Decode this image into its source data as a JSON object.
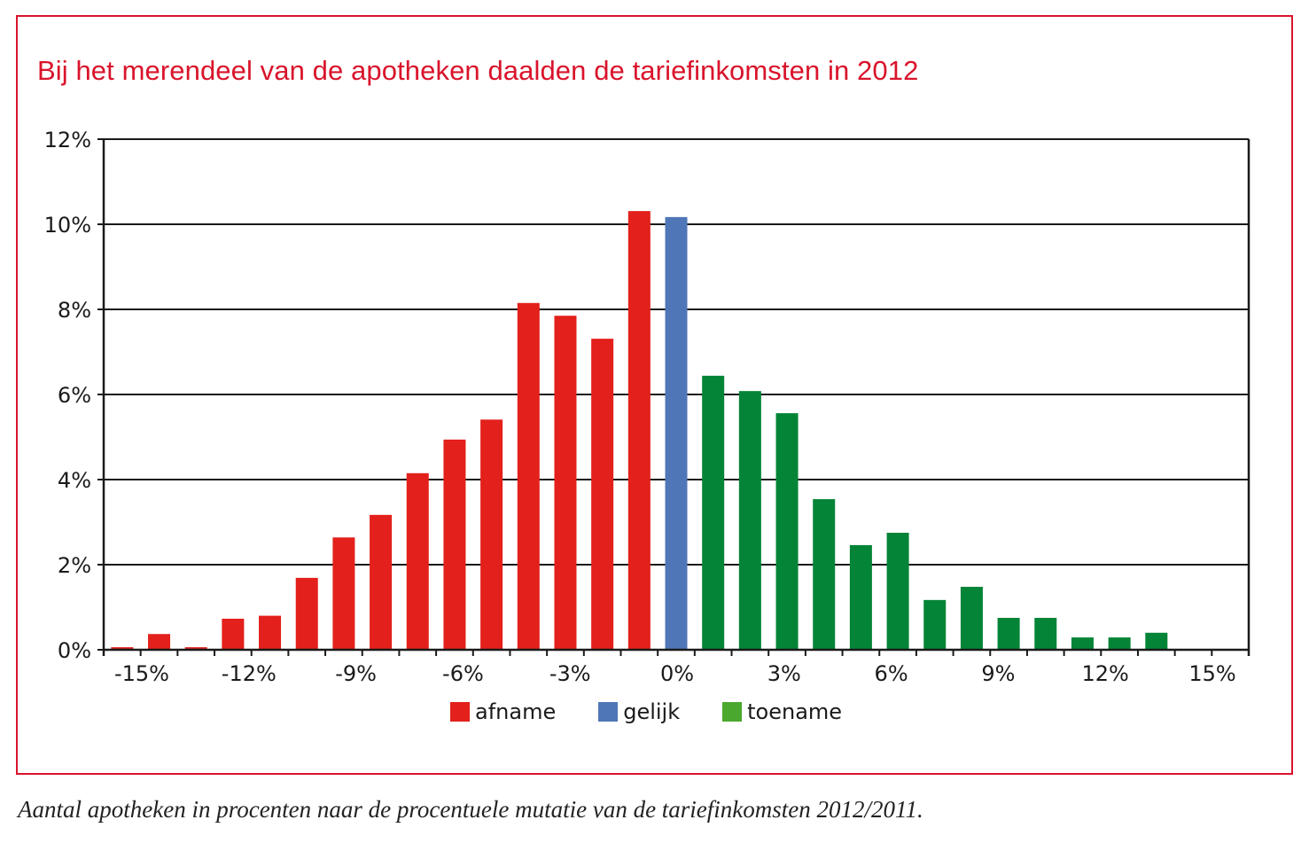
{
  "title": "Bij het merendeel van de apotheken daalden de tariefinkomsten in 2012",
  "caption": "Aantal apotheken in procenten naar de procentuele mutatie van de tariefinkomsten 2012/2011.",
  "colors": {
    "frame": "#d9142b",
    "title": "#d9142b",
    "afname": "#e3201b",
    "gelijk": "#4f76b6",
    "toename": "#048437",
    "toename_legend": "#4aa82e",
    "axis": "#1a1a1a"
  },
  "chart_data": {
    "type": "bar",
    "title": "Bij het merendeel van de apotheken daalden de tariefinkomsten in 2012",
    "xlabel": "",
    "ylabel": "",
    "ylim": [
      0,
      12
    ],
    "xlim": [
      -15,
      15
    ],
    "grid": true,
    "legend_position": "bottom",
    "y_ticks": [
      "0%",
      "2%",
      "4%",
      "6%",
      "8%",
      "10%",
      "12%"
    ],
    "y_tick_values": [
      0,
      2,
      4,
      6,
      8,
      10,
      12
    ],
    "x_ticks": [
      "-15%",
      "-12%",
      "-9%",
      "-6%",
      "-3%",
      "0%",
      "3%",
      "6%",
      "9%",
      "12%",
      "15%"
    ],
    "x_tick_values": [
      -15,
      -12,
      -9,
      -6,
      -3,
      0,
      3,
      6,
      9,
      12,
      15
    ],
    "legend": [
      {
        "key": "afname",
        "label": "afname"
      },
      {
        "key": "gelijk",
        "label": "gelijk"
      },
      {
        "key": "toename",
        "label": "toename"
      }
    ],
    "bars": [
      {
        "category": "afname",
        "value": 0.06
      },
      {
        "category": "afname",
        "value": 0.37
      },
      {
        "category": "afname",
        "value": 0.06
      },
      {
        "category": "afname",
        "value": 0.73
      },
      {
        "category": "afname",
        "value": 0.8
      },
      {
        "category": "afname",
        "value": 1.69
      },
      {
        "category": "afname",
        "value": 2.64
      },
      {
        "category": "afname",
        "value": 3.17
      },
      {
        "category": "afname",
        "value": 4.15
      },
      {
        "category": "afname",
        "value": 4.94
      },
      {
        "category": "afname",
        "value": 5.41
      },
      {
        "category": "afname",
        "value": 8.15
      },
      {
        "category": "afname",
        "value": 7.85
      },
      {
        "category": "afname",
        "value": 7.31
      },
      {
        "category": "afname",
        "value": 10.31
      },
      {
        "category": "gelijk",
        "value": 10.17
      },
      {
        "category": "toename",
        "value": 6.44
      },
      {
        "category": "toename",
        "value": 6.08
      },
      {
        "category": "toename",
        "value": 5.56
      },
      {
        "category": "toename",
        "value": 3.54
      },
      {
        "category": "toename",
        "value": 2.46
      },
      {
        "category": "toename",
        "value": 2.75
      },
      {
        "category": "toename",
        "value": 1.17
      },
      {
        "category": "toename",
        "value": 1.48
      },
      {
        "category": "toename",
        "value": 0.75
      },
      {
        "category": "toename",
        "value": 0.75
      },
      {
        "category": "toename",
        "value": 0.29
      },
      {
        "category": "toename",
        "value": 0.29
      },
      {
        "category": "toename",
        "value": 0.4
      },
      {
        "category": "toename",
        "value": 0
      },
      {
        "category": "toename",
        "value": 0
      }
    ]
  }
}
